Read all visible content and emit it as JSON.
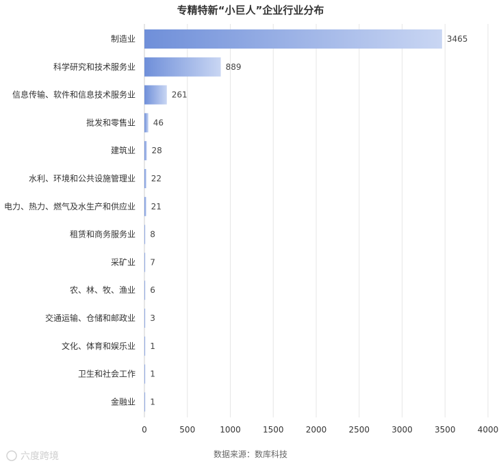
{
  "chart_data": {
    "type": "bar",
    "orientation": "horizontal",
    "title": "专精特新“小巨人”企业行业分布",
    "categories": [
      "制造业",
      "科学研究和技术服务业",
      "信息传输、软件和信息技术服务业",
      "批发和零售业",
      "建筑业",
      "水利、环境和公共设施管理业",
      "电力、热力、燃气及水生产和供应业",
      "租赁和商务服务业",
      "采矿业",
      "农、林、牧、渔业",
      "交通运输、仓储和邮政业",
      "文化、体育和娱乐业",
      "卫生和社会工作",
      "金融业"
    ],
    "values": [
      3465,
      889,
      261,
      46,
      28,
      22,
      21,
      8,
      7,
      6,
      3,
      1,
      1,
      1
    ],
    "xlim": [
      0,
      4000
    ],
    "xticks": [
      0,
      500,
      1000,
      1500,
      2000,
      2500,
      3000,
      3500,
      4000
    ],
    "grid": "vertical",
    "legend": "none",
    "bar_color_start": "#6f8fd9",
    "bar_color_end": "#c9d6f3",
    "source": "数据来源：数库科技"
  },
  "watermark": {
    "text": "六度跨境"
  }
}
